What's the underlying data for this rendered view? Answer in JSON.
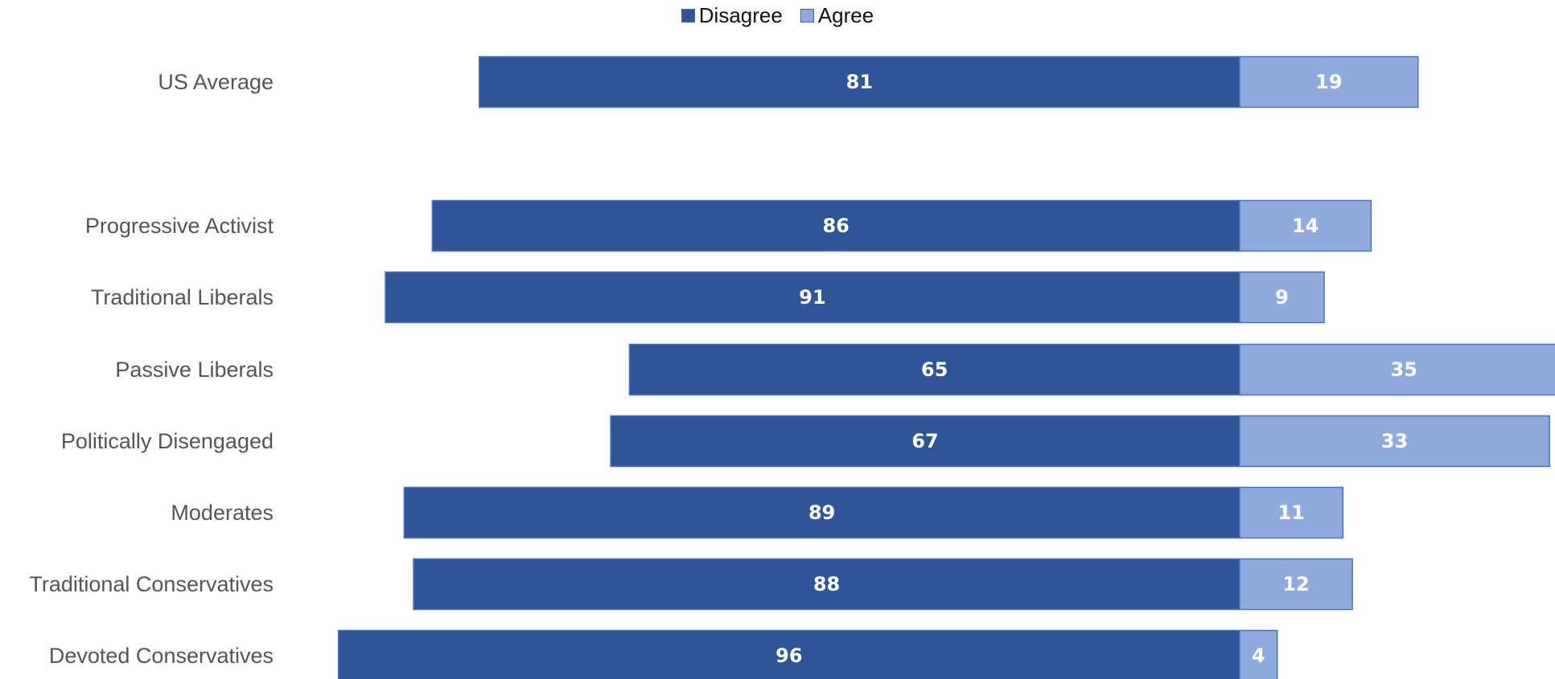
{
  "chart_data": {
    "type": "bar",
    "orientation": "horizontal",
    "stacked": true,
    "diverging": true,
    "legend_position": "top-center",
    "grid": false,
    "categories": [
      "US Average",
      "Progressive Activist",
      "Traditional Liberals",
      "Passive Liberals",
      "Politically Disengaged",
      "Moderates",
      "Traditional Conservatives",
      "Devoted Conservatives"
    ],
    "series": [
      {
        "name": "Disagree",
        "values": [
          81,
          86,
          91,
          65,
          67,
          89,
          88,
          96
        ],
        "color": "#2f5597"
      },
      {
        "name": "Agree",
        "values": [
          19,
          14,
          9,
          35,
          33,
          11,
          12,
          4
        ],
        "color": "#8faadc"
      }
    ],
    "data_labels": true
  }
}
